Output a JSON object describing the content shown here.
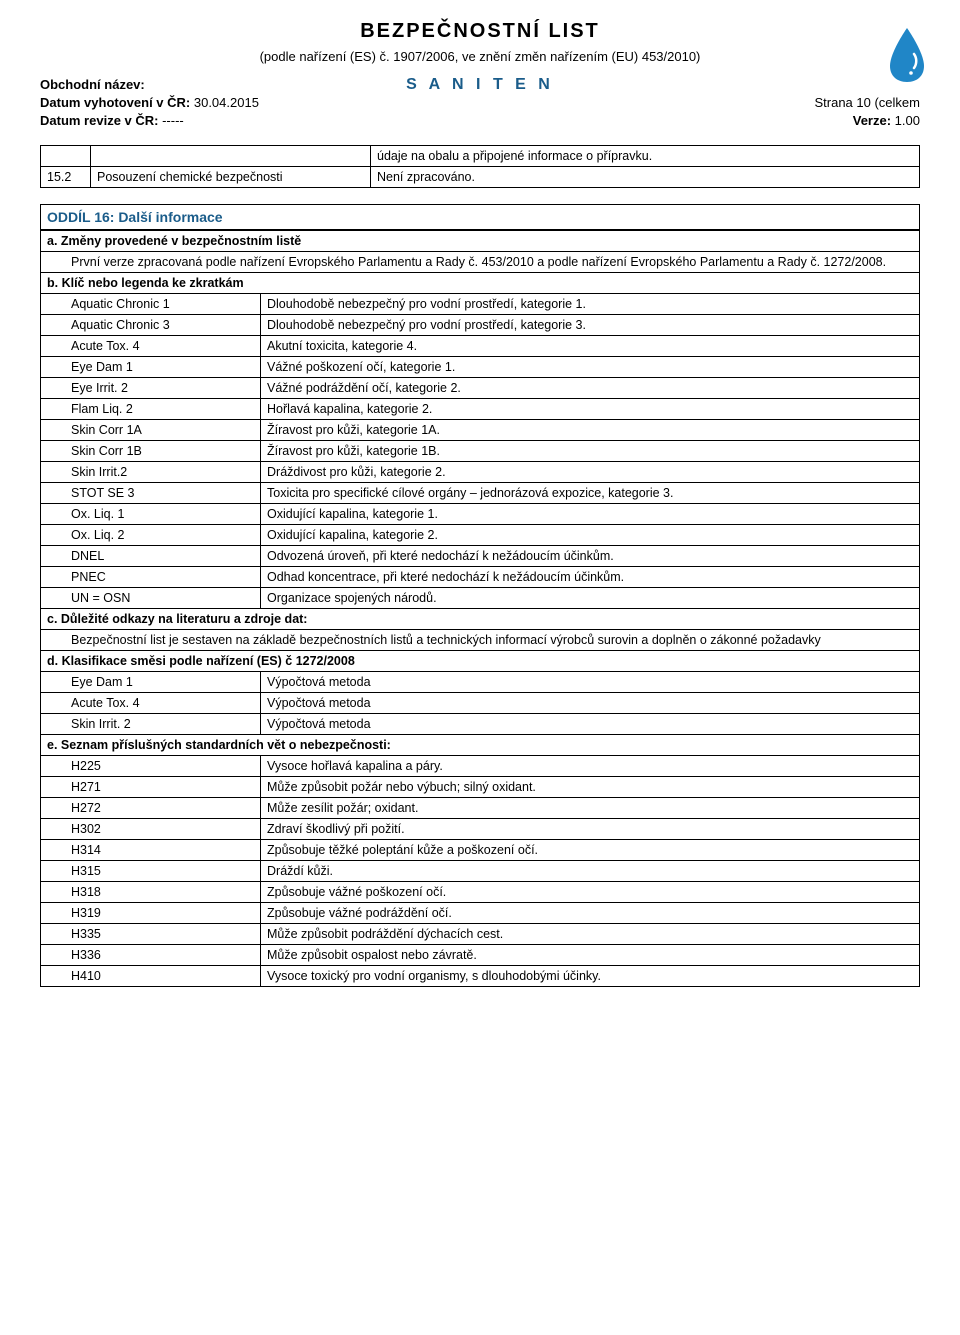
{
  "header": {
    "title": "BEZPEČNOSTNÍ LIST",
    "subtitle": "(podle nařízení (ES) č. 1907/2006, ve znění změn nařízením (EU) 453/2010)",
    "product_name": "S A N I T E N",
    "left": {
      "l1_label": "Obchodní název:",
      "l2_label": "Datum vyhotovení v ČR:",
      "l2_value": " 30.04.2015",
      "l3_label": "Datum revize v ČR:",
      "l3_value": "   -----"
    },
    "right": {
      "r1": "Strana 10 (celkem",
      "r2_label": "Verze:",
      "r2_value": " 1.00"
    }
  },
  "table1": {
    "rows": [
      {
        "num": "",
        "left": "",
        "right": "údaje na obalu a připojené informace o přípravku."
      },
      {
        "num": "15.2",
        "left": "Posouzení chemické bezpečnosti",
        "right": "Není zpracováno."
      }
    ]
  },
  "section16": {
    "title": "ODDÍL 16: Další informace",
    "a": {
      "heading": "a. Změny provedené v bezpečnostním listě",
      "text": "První verze zpracovaná podle nařízení Evropského Parlamentu a Rady č. 453/2010 a podle nařízení Evropského Parlamentu a Rady č. 1272/2008."
    },
    "b": {
      "heading": "b. Klíč nebo legenda ke zkratkám",
      "rows": [
        {
          "code": "Aquatic Chronic 1",
          "desc": "Dlouhodobě nebezpečný pro vodní prostředí, kategorie 1."
        },
        {
          "code": "Aquatic Chronic 3",
          "desc": "Dlouhodobě nebezpečný pro vodní prostředí, kategorie 3."
        },
        {
          "code": "Acute Tox. 4",
          "desc": "Akutní toxicita, kategorie 4."
        },
        {
          "code": "Eye Dam 1",
          "desc": "Vážné poškození očí, kategorie 1."
        },
        {
          "code": "Eye Irrit. 2",
          "desc": "Vážné podráždění očí, kategorie 2."
        },
        {
          "code": "Flam Liq. 2",
          "desc": "Hořlavá kapalina, kategorie 2."
        },
        {
          "code": "Skin Corr 1A",
          "desc": "Žíravost pro kůži, kategorie 1A."
        },
        {
          "code": "Skin Corr 1B",
          "desc": "Žíravost pro kůži, kategorie 1B."
        },
        {
          "code": "Skin Irrit.2",
          "desc": "Dráždivost pro kůži, kategorie 2."
        },
        {
          "code": "STOT SE 3",
          "desc": "Toxicita pro specifické cílové orgány – jednorázová expozice, kategorie 3."
        },
        {
          "code": "Ox. Liq. 1",
          "desc": "Oxidující kapalina, kategorie 1."
        },
        {
          "code": "Ox. Liq. 2",
          "desc": "Oxidující kapalina, kategorie 2."
        },
        {
          "code": "DNEL",
          "desc": "Odvozená úroveň, při které nedochází k nežádoucím účinkům."
        },
        {
          "code": "PNEC",
          "desc": "Odhad koncentrace, při které nedochází k nežádoucím účinkům."
        },
        {
          "code": "UN = OSN",
          "desc": "Organizace spojených národů."
        }
      ]
    },
    "c": {
      "heading": "c. Důležité odkazy na literaturu a zdroje dat:",
      "text": "Bezpečnostní list je sestaven na základě bezpečnostních listů a technických informací výrobců surovin a doplněn o zákonné požadavky"
    },
    "d": {
      "heading": "d. Klasifikace směsi podle nařízení (ES) č 1272/2008",
      "rows": [
        {
          "code": "Eye Dam 1",
          "desc": "Výpočtová metoda"
        },
        {
          "code": "Acute Tox. 4",
          "desc": "Výpočtová metoda"
        },
        {
          "code": "Skin Irrit. 2",
          "desc": "Výpočtová metoda"
        }
      ]
    },
    "e": {
      "heading": "e. Seznam příslušných standardních vět o nebezpečnosti:",
      "rows": [
        {
          "code": "H225",
          "desc": "Vysoce hořlavá kapalina a páry."
        },
        {
          "code": "H271",
          "desc": "Může způsobit požár nebo výbuch; silný oxidant."
        },
        {
          "code": "H272",
          "desc": "Může zesílit požár; oxidant."
        },
        {
          "code": "H302",
          "desc": "Zdraví škodlivý při požití."
        },
        {
          "code": "H314",
          "desc": "Způsobuje těžké poleptání kůže a poškození očí."
        },
        {
          "code": "H315",
          "desc": "Dráždí kůži."
        },
        {
          "code": "H318",
          "desc": "Způsobuje vážné poškození očí."
        },
        {
          "code": "H319",
          "desc": "Způsobuje vážné podráždění očí."
        },
        {
          "code": "H335",
          "desc": "Může způsobit podráždění dýchacích cest."
        },
        {
          "code": "H336",
          "desc": "Může způsobit ospalost nebo závratě."
        },
        {
          "code": "H410",
          "desc": "Vysoce toxický pro vodní organismy, s dlouhodobými účinky."
        }
      ]
    }
  },
  "style": {
    "accent_color": "#1a5c8a",
    "border_color": "#000000",
    "text_color": "#000000",
    "background": "#ffffff",
    "font_family": "Arial",
    "title_fontsize": 20,
    "body_fontsize": 13,
    "table_fontsize": 12.5,
    "drop_fill": "#2086c7",
    "drop_highlight": "#ffffff"
  }
}
